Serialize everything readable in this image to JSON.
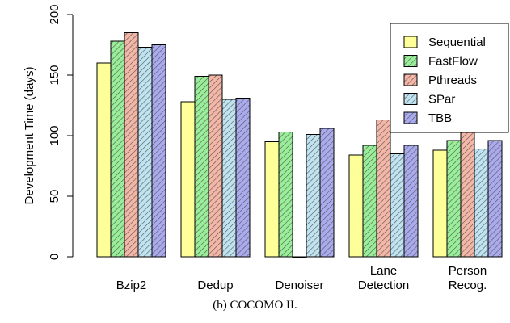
{
  "chart_data": {
    "type": "bar",
    "categories": [
      [
        "Bzip2"
      ],
      [
        "Dedup"
      ],
      [
        "Denoiser"
      ],
      [
        "Lane",
        "Detection"
      ],
      [
        "Person",
        "Recog."
      ]
    ],
    "series": [
      {
        "name": "Sequential",
        "color": "#ffff99",
        "pattern": "none",
        "values": [
          160,
          128,
          95,
          84,
          88
        ]
      },
      {
        "name": "FastFlow",
        "color": "#99ee99",
        "pattern": "diagonal",
        "values": [
          178,
          149,
          103,
          92,
          96
        ]
      },
      {
        "name": "Pthreads",
        "color": "#f4b6a6",
        "pattern": "diagonal",
        "values": [
          185,
          150,
          0,
          113,
          116
        ]
      },
      {
        "name": "SPar",
        "color": "#bfe3f0",
        "pattern": "diagonal",
        "values": [
          173,
          130,
          101,
          85,
          89
        ]
      },
      {
        "name": "TBB",
        "color": "#aaaaee",
        "pattern": "diagonal",
        "values": [
          175,
          131,
          106,
          92,
          96
        ]
      }
    ],
    "ylabel": "Development Time (days)",
    "ylim": [
      0,
      200
    ],
    "yticks": [
      "0",
      "50",
      "100",
      "150",
      "200"
    ],
    "grid": false,
    "legend_position": "top-right"
  },
  "caption": "(b) COCOMO II."
}
